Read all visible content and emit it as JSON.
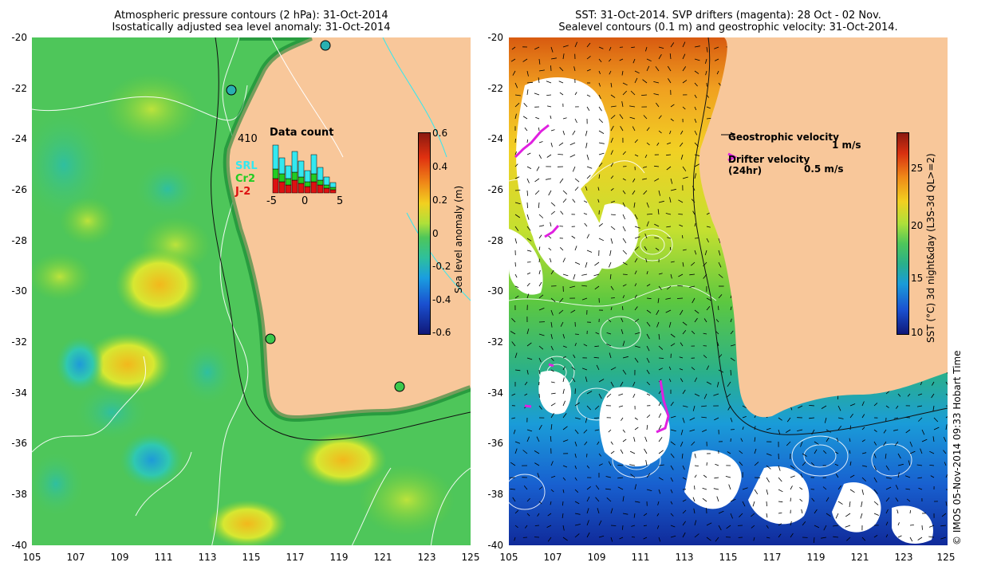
{
  "left_panel": {
    "title_line1": "Atmospheric pressure contours (2 hPa): 31-Oct-2014",
    "title_line2": "Isostatically adjusted sea level anomaly: 31-Oct-2014",
    "y_ticks": [
      "-20",
      "-22",
      "-24",
      "-26",
      "-28",
      "-30",
      "-32",
      "-34",
      "-36",
      "-38",
      "-40"
    ],
    "x_ticks": [
      "105",
      "107",
      "109",
      "111",
      "113",
      "115",
      "117",
      "119",
      "121",
      "123",
      "125"
    ],
    "colorbar": {
      "label": "Sea level anomaly (m)",
      "ticks": [
        "0.6",
        "0.4",
        "0.2",
        "0",
        "-0.2",
        "-0.4",
        "-0.6"
      ]
    },
    "data_count": {
      "title": "Data count",
      "max_label": "410",
      "legend": [
        {
          "name": "SRL",
          "color": "#33e8f0"
        },
        {
          "name": "Cr2",
          "color": "#22cc22"
        },
        {
          "name": "J-2",
          "color": "#dd1111"
        }
      ],
      "x_ticks": [
        "-5",
        "0",
        "5"
      ]
    }
  },
  "right_panel": {
    "title_line1": "SST: 31-Oct-2014. SVP drifters (magenta): 28 Oct - 02 Nov.",
    "title_line2": "Sealevel contours (0.1 m) and geostrophic velocity: 31-Oct-2014.",
    "y_ticks": [
      "-20",
      "-22",
      "-24",
      "-26",
      "-28",
      "-30",
      "-32",
      "-34",
      "-36",
      "-38",
      "-40"
    ],
    "x_ticks": [
      "105",
      "107",
      "109",
      "111",
      "113",
      "115",
      "117",
      "119",
      "121",
      "123",
      "125"
    ],
    "geo_velocity_label": "Geostrophic velocity",
    "geo_velocity_unit": "1 m/s",
    "drifter_velocity_label": "Drifter velocity",
    "drifter_velocity_sub": "(24hr)",
    "drifter_velocity_unit": "0.5 m/s",
    "colorbar": {
      "label": "SST (°C) 3d night&day (L3S-3d QL>=2)",
      "ticks": [
        "25",
        "20",
        "15",
        "10"
      ]
    }
  },
  "credit": "© IMOS 05-Nov-2014 09:33 Hobart Time",
  "colors": {
    "land": "#f8c79a",
    "cloud": "#ffffff",
    "drifter": "#e020e0"
  }
}
